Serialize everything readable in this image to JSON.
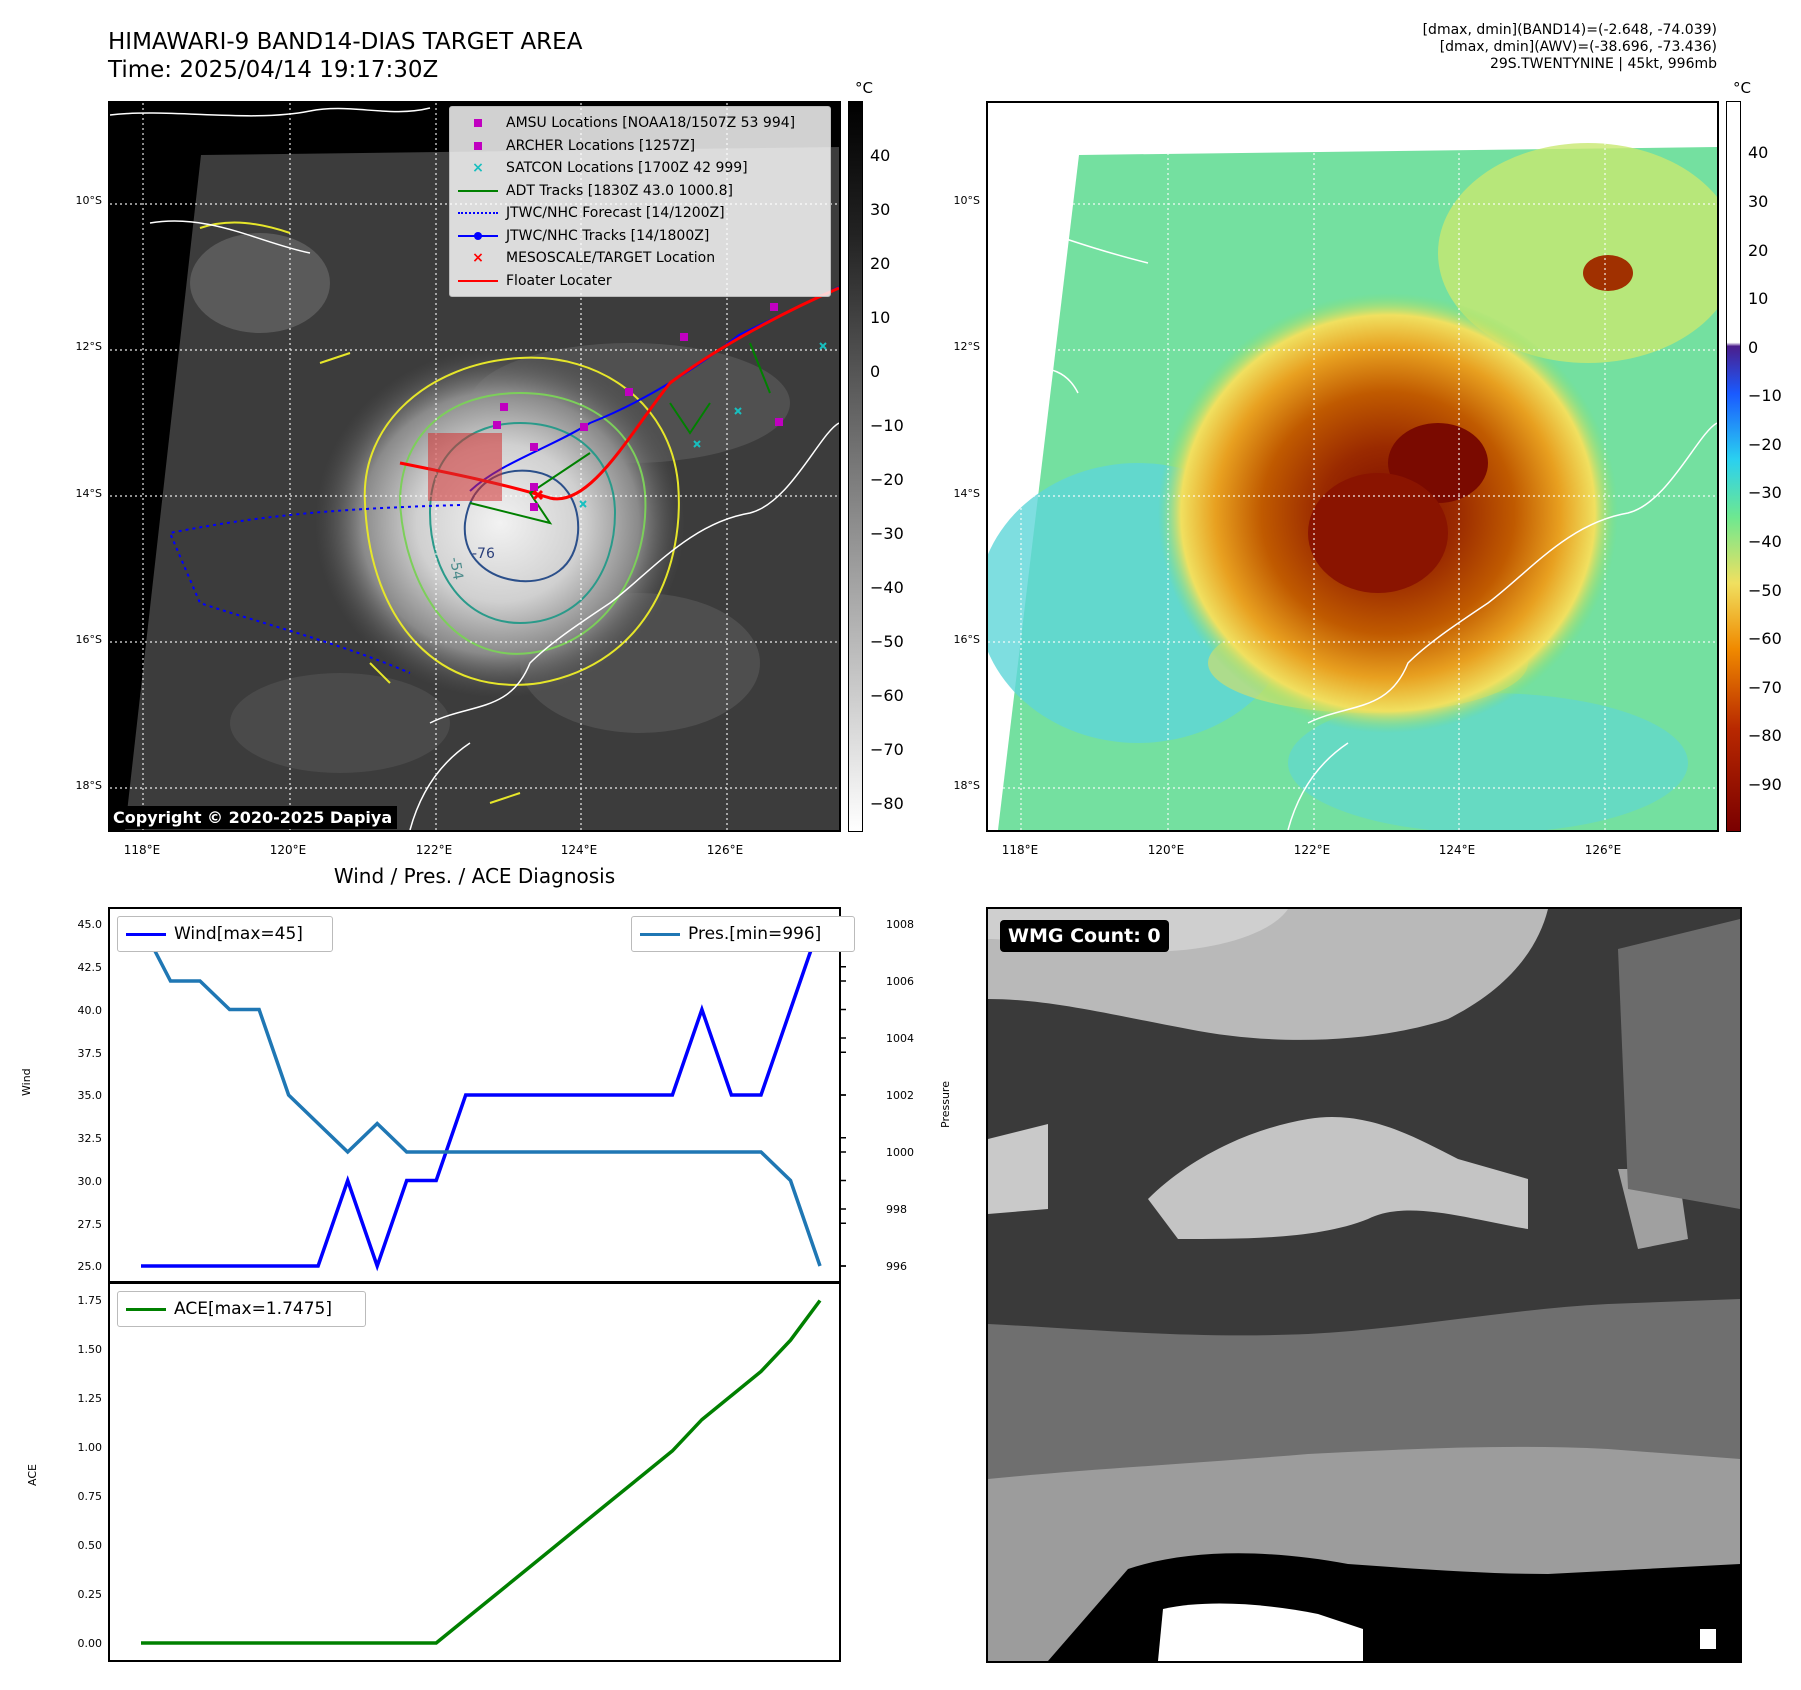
{
  "header": {
    "title_line1": "HIMAWARI-9 BAND14-DIAS TARGET AREA",
    "title_line2": "Time: 2025/04/14 19:17:30Z",
    "info_line1": "[dmax, dmin](BAND14)=(-2.648, -74.039)",
    "info_line2": "[dmax, dmin](AWV)=(-38.696, -73.436)",
    "info_line3": "29S.TWENTYNINE | 45kt, 996mb"
  },
  "map": {
    "lat_labels": [
      "10°S",
      "12°S",
      "14°S",
      "16°S",
      "18°S"
    ],
    "lon_labels": [
      "118°E",
      "120°E",
      "122°E",
      "124°E",
      "126°E"
    ],
    "contour_label_1": "-76",
    "contour_label_2": "-54",
    "copyright": "Copyright © 2020-2025 Dapiya",
    "colorbar_unit": "°C",
    "colorbar1_ticks": [
      "40",
      "30",
      "20",
      "10",
      "0",
      "−10",
      "−20",
      "−30",
      "−40",
      "−50",
      "−60",
      "−70",
      "−80"
    ],
    "colorbar2_ticks": [
      "40",
      "30",
      "20",
      "10",
      "0",
      "−10",
      "−20",
      "−30",
      "−40",
      "−50",
      "−60",
      "−70",
      "−80",
      "−90"
    ],
    "legend": [
      {
        "label": "AMSU Locations [NOAA18/1507Z 53 994]",
        "color": "#c000c0",
        "icon": "square-marker"
      },
      {
        "label": "ARCHER Locations [1257Z]",
        "color": "#c000c0",
        "icon": "square-marker"
      },
      {
        "label": "SATCON Locations [1700Z 42 999]",
        "color": "#17bfbf",
        "icon": "x-marker"
      },
      {
        "label": "ADT Tracks [1830Z 43.0 1000.8]",
        "color": "#008000",
        "icon": "line"
      },
      {
        "label": "JTWC/NHC Forecast [14/1200Z]",
        "color": "#0000ff",
        "icon": "dotted-line"
      },
      {
        "label": "JTWC/NHC Tracks [14/1800Z]",
        "color": "#0000ff",
        "icon": "line-dot"
      },
      {
        "label": "MESOSCALE/TARGET Location",
        "color": "#ff0000",
        "icon": "x-marker"
      },
      {
        "label": "Floater Locater",
        "color": "#ff0000",
        "icon": "line"
      }
    ]
  },
  "diagnosis": {
    "title": "Wind / Pres. / ACE Diagnosis",
    "wind_ylabel": "Wind",
    "pres_ylabel": "Pressure",
    "ace_ylabel": "ACE",
    "wind_legend": "Wind[max=45]",
    "pres_legend": "Pres.[min=996]",
    "ace_legend": "ACE[max=1.7475]",
    "wind_ticks": [
      "45.0",
      "42.5",
      "40.0",
      "37.5",
      "35.0",
      "32.5",
      "30.0",
      "27.5",
      "25.0"
    ],
    "pres_ticks": [
      "1008",
      "1006",
      "1004",
      "1002",
      "1000",
      "998",
      "996"
    ],
    "ace_ticks": [
      "1.75",
      "1.50",
      "1.25",
      "1.00",
      "0.75",
      "0.50",
      "0.25",
      "0.00"
    ]
  },
  "wmg": {
    "label": "WMG Count: 0"
  },
  "chart_data": [
    {
      "type": "line",
      "title": "Wind / Pres. / ACE Diagnosis",
      "ylabel": "Wind",
      "ylim": [
        25,
        45
      ],
      "series": [
        {
          "name": "Wind[max=45]",
          "color": "#0000ff",
          "values": [
            25,
            25,
            25,
            25,
            25,
            25,
            25,
            30,
            25,
            30,
            30,
            35,
            35,
            35,
            35,
            35,
            35,
            35,
            35,
            40,
            35,
            35,
            40,
            45
          ]
        }
      ]
    },
    {
      "type": "line",
      "ylabel": "Pressure",
      "ylim": [
        996,
        1008
      ],
      "series": [
        {
          "name": "Pres.[min=996]",
          "color": "#1f77b4",
          "values": [
            1008,
            1006,
            1006,
            1005,
            1005,
            1002,
            1001,
            1000,
            1001,
            1000,
            1000,
            1000,
            1000,
            1000,
            1000,
            1000,
            1000,
            1000,
            1000,
            1000,
            1000,
            1000,
            999,
            996
          ]
        }
      ]
    },
    {
      "type": "line",
      "ylabel": "ACE",
      "ylim": [
        0,
        1.75
      ],
      "series": [
        {
          "name": "ACE[max=1.7475]",
          "color": "#008000",
          "values": [
            0,
            0,
            0,
            0,
            0,
            0,
            0,
            0,
            0,
            0,
            0,
            0.1225,
            0.245,
            0.3675,
            0.49,
            0.6125,
            0.735,
            0.8575,
            0.98,
            1.14,
            1.2625,
            1.385,
            1.545,
            1.7475
          ]
        }
      ]
    }
  ]
}
